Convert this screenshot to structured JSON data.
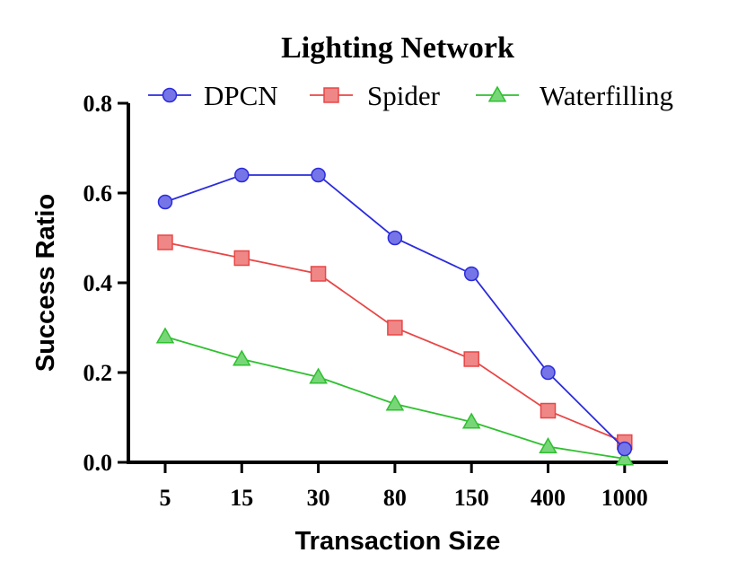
{
  "chart_data": {
    "type": "line",
    "title": "Lighting Network",
    "xlabel": "Transaction Size",
    "ylabel": "Success Ratio",
    "categories": [
      "5",
      "15",
      "30",
      "80",
      "150",
      "400",
      "1000"
    ],
    "ylim": [
      0,
      0.8
    ],
    "yticks": [
      "0.0",
      "0.2",
      "0.4",
      "0.6",
      "0.8"
    ],
    "grid": false,
    "legend_position": "top",
    "series": [
      {
        "name": "DPCN",
        "color": "#2b2bdc",
        "marker": "circle",
        "values": [
          0.58,
          0.64,
          0.64,
          0.5,
          0.42,
          0.2,
          0.03
        ]
      },
      {
        "name": "Spider",
        "color": "#e84646",
        "marker": "square",
        "values": [
          0.49,
          0.455,
          0.42,
          0.3,
          0.23,
          0.115,
          0.045
        ]
      },
      {
        "name": "Waterfilling",
        "color": "#2fc02f",
        "marker": "triangle",
        "values": [
          0.28,
          0.23,
          0.19,
          0.13,
          0.09,
          0.035,
          0.008
        ]
      }
    ]
  }
}
